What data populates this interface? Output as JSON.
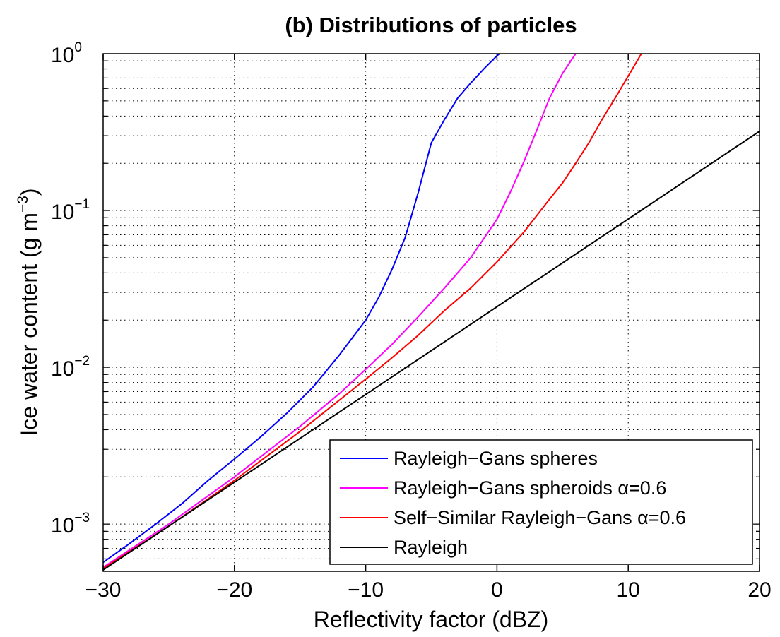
{
  "chart_data": {
    "type": "line",
    "title": "(b) Distributions of particles",
    "xlabel": "Reflectivity factor (dBZ)",
    "ylabel_main": "Ice water content (g m",
    "ylabel_exp": "−3",
    "ylabel_close": ")",
    "xlim": [
      -30,
      20
    ],
    "ylim": [
      0.0005,
      1
    ],
    "yscale": "log",
    "grid": true,
    "legend_position": "lower-right",
    "xticks": [
      {
        "value": -30,
        "label": "−30"
      },
      {
        "value": -20,
        "label": "−20"
      },
      {
        "value": -10,
        "label": "−10"
      },
      {
        "value": 0,
        "label": "0"
      },
      {
        "value": 10,
        "label": "10"
      },
      {
        "value": 20,
        "label": "20"
      }
    ],
    "yticks": [
      {
        "value": 0.001,
        "base": "10",
        "exp": "−3"
      },
      {
        "value": 0.01,
        "base": "10",
        "exp": "−2"
      },
      {
        "value": 0.1,
        "base": "10",
        "exp": "−1"
      },
      {
        "value": 1,
        "base": "10",
        "exp": "0"
      }
    ],
    "series": [
      {
        "name": "Rayleigh−Gans spheres",
        "color": "#0000ff",
        "x": [
          -30,
          -28,
          -26,
          -24,
          -22,
          -20,
          -18,
          -16,
          -14,
          -12,
          -10,
          -9,
          -8,
          -7,
          -6,
          -5,
          -4,
          -3,
          -2,
          -1,
          0,
          0.2
        ],
        "y": [
          0.00057,
          0.00075,
          0.001,
          0.00135,
          0.0019,
          0.0026,
          0.0036,
          0.0051,
          0.0075,
          0.012,
          0.02,
          0.028,
          0.042,
          0.067,
          0.13,
          0.27,
          0.38,
          0.52,
          0.65,
          0.8,
          0.97,
          1.0
        ]
      },
      {
        "name": "Rayleigh−Gans spheroids α=0.6",
        "color": "#ff00ff",
        "x": [
          -30,
          -25,
          -20,
          -15,
          -12,
          -10,
          -8,
          -6,
          -4,
          -2,
          0,
          1,
          2,
          3,
          4,
          5,
          6
        ],
        "y": [
          0.00053,
          0.001,
          0.002,
          0.0042,
          0.0068,
          0.0097,
          0.014,
          0.021,
          0.032,
          0.05,
          0.088,
          0.13,
          0.2,
          0.32,
          0.52,
          0.75,
          1.0
        ]
      },
      {
        "name": "Self−Similar Rayleigh−Gans α=0.6",
        "color": "#ff0000",
        "x": [
          -30,
          -25,
          -20,
          -15,
          -10,
          -8,
          -6,
          -4,
          -2,
          0,
          2,
          4,
          5,
          6,
          7,
          8,
          9,
          10,
          11
        ],
        "y": [
          0.00052,
          0.00097,
          0.0019,
          0.0039,
          0.0084,
          0.0115,
          0.016,
          0.023,
          0.032,
          0.047,
          0.072,
          0.118,
          0.15,
          0.2,
          0.27,
          0.38,
          0.52,
          0.72,
          1.0
        ]
      },
      {
        "name": "Rayleigh",
        "color": "#000000",
        "x": [
          -30,
          20
        ],
        "y": [
          0.00051,
          0.32
        ]
      }
    ]
  }
}
